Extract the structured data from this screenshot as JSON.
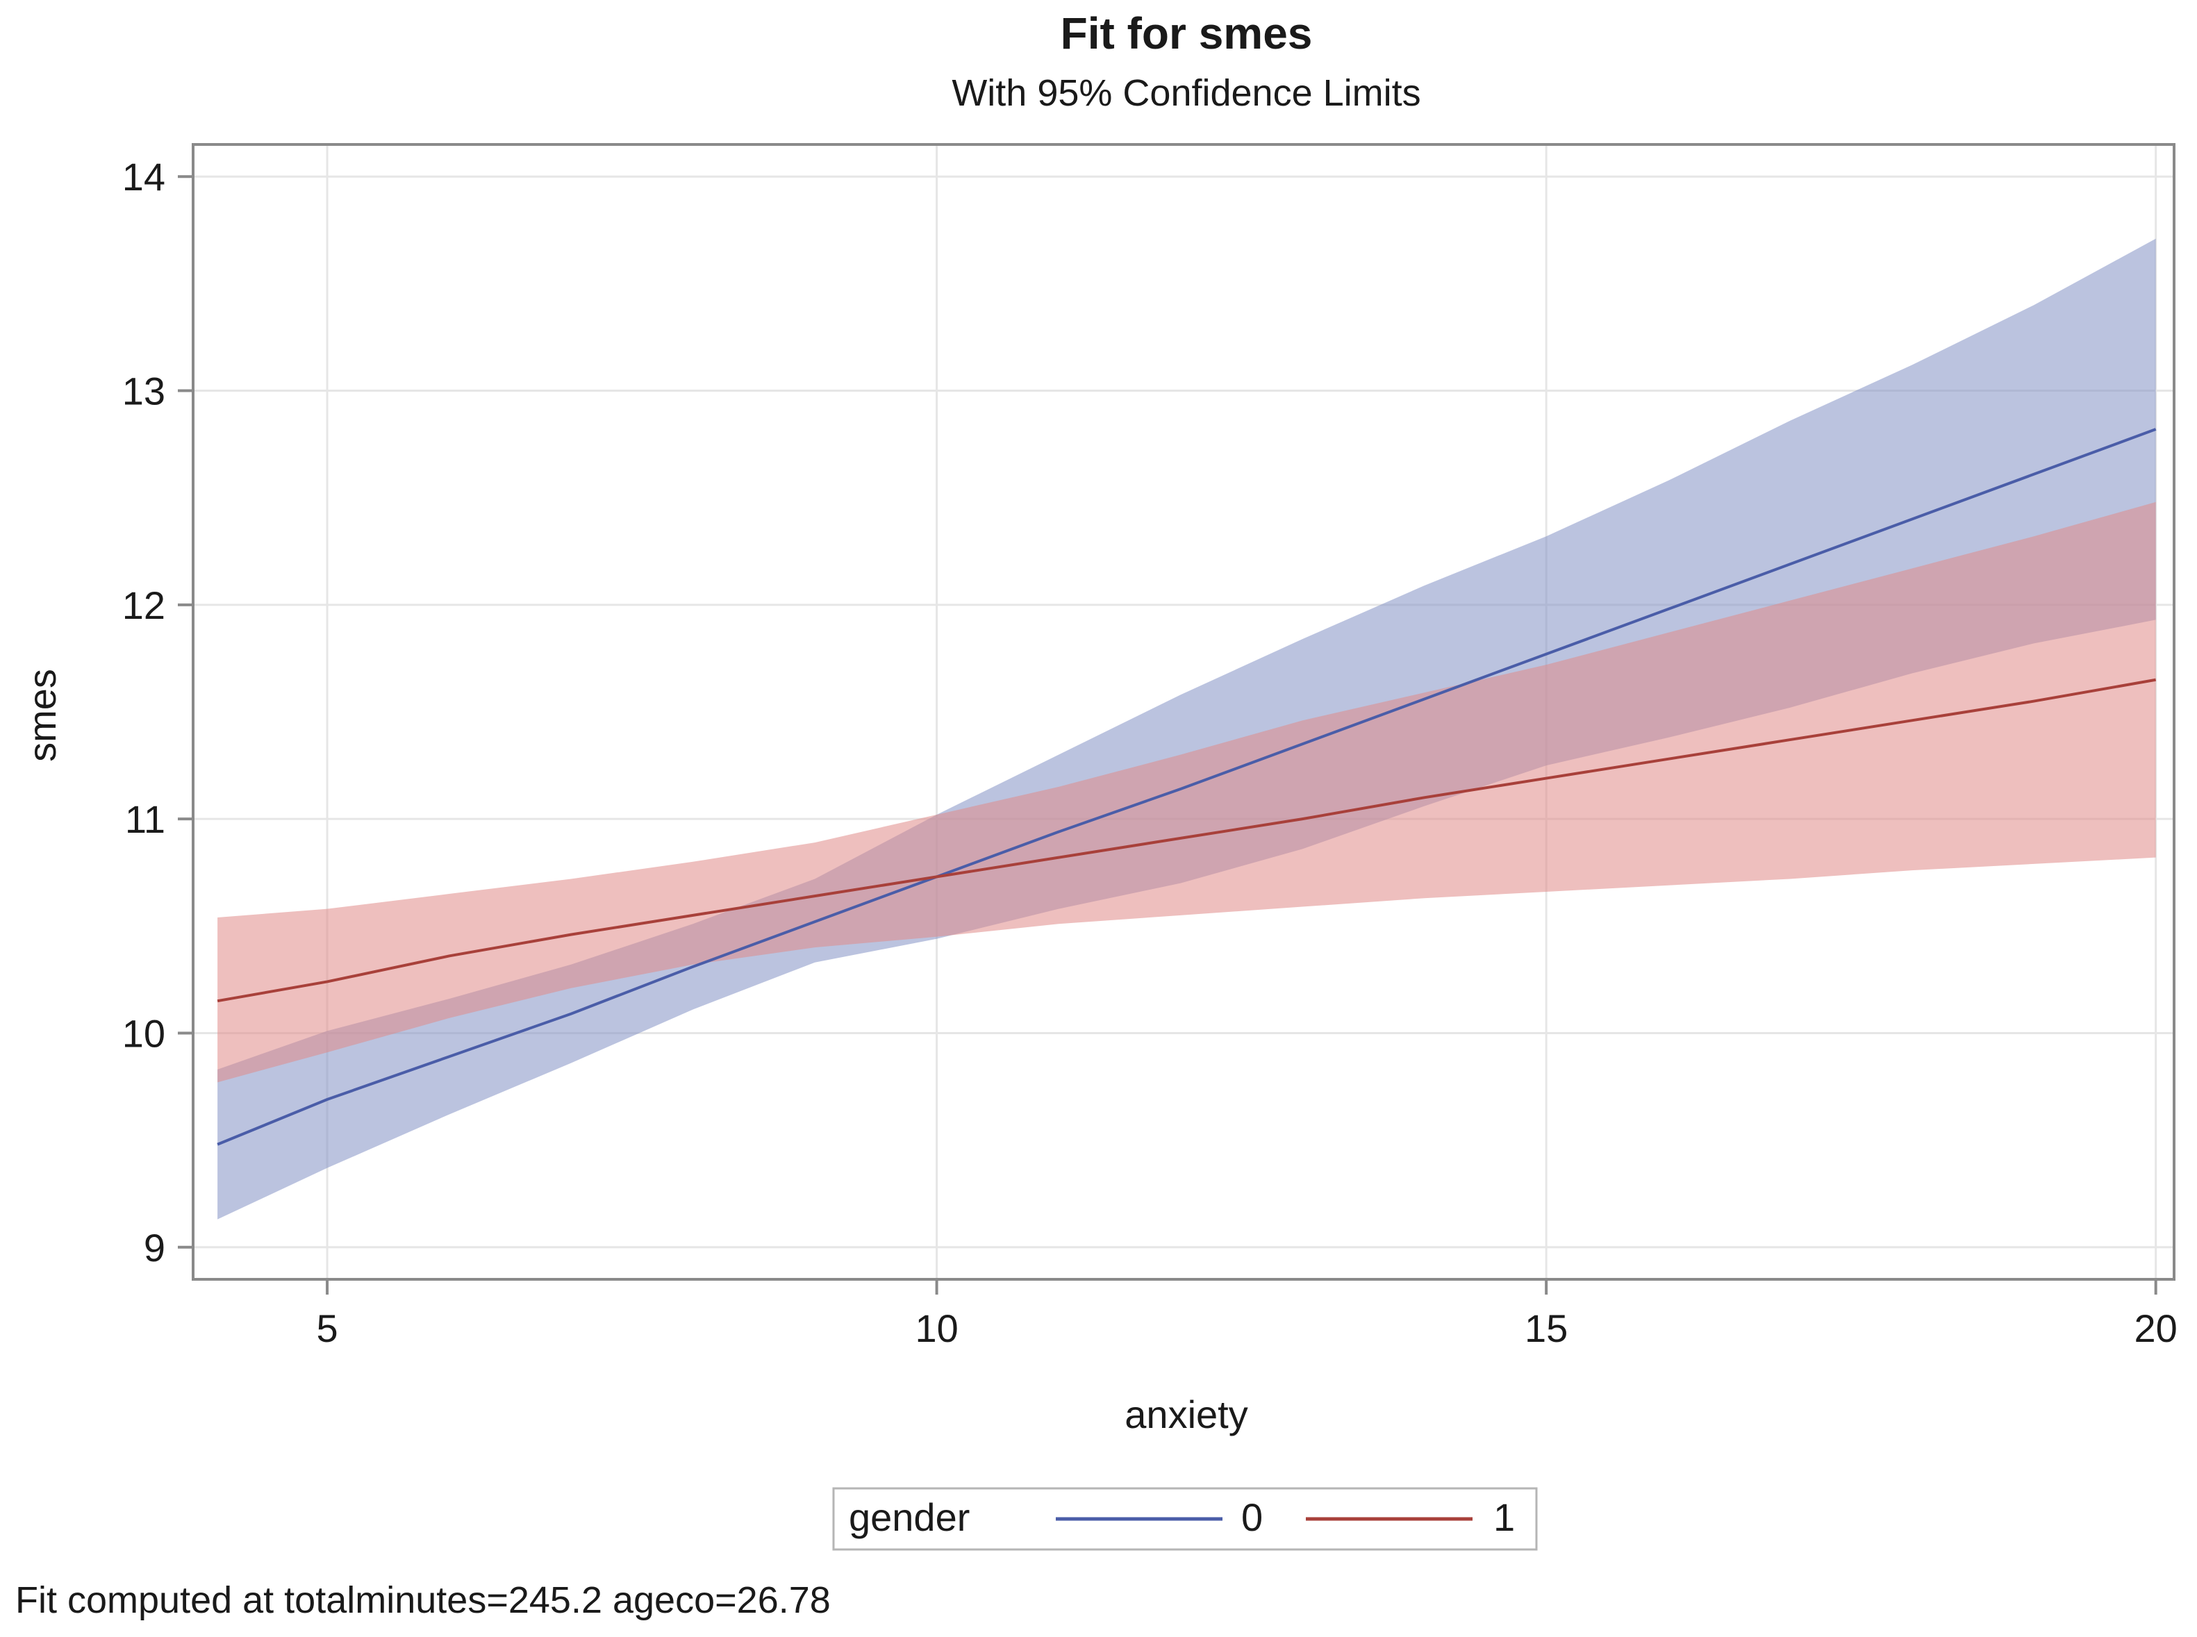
{
  "chart_data": {
    "type": "line",
    "title": "Fit for smes",
    "subtitle": "With 95% Confidence Limits",
    "xlabel": "anxiety",
    "ylabel": "smes",
    "xlim": [
      3.9,
      20.15
    ],
    "ylim": [
      8.85,
      14.15
    ],
    "x_ticks": [
      5,
      10,
      15,
      20
    ],
    "y_ticks": [
      9,
      10,
      11,
      12,
      13,
      14
    ],
    "grid": true,
    "legend": {
      "title": "gender",
      "placement": "bottom-center",
      "entries": [
        {
          "label": "0",
          "color": "#4a5da8"
        },
        {
          "label": "1",
          "color": "#a8403a"
        }
      ]
    },
    "footnote": "Fit computed at totalminutes=245.2 ageco=26.78",
    "series": [
      {
        "name": "0",
        "line_color": "#4a5da8",
        "band_color": "#8491c4",
        "x": [
          4.1,
          5.0,
          6.0,
          7.0,
          8.0,
          9.0,
          10.0,
          11.0,
          12.0,
          13.0,
          14.0,
          15.0,
          16.0,
          17.0,
          18.0,
          19.0,
          20.0
        ],
        "fit": [
          9.48,
          9.69,
          9.89,
          10.09,
          10.31,
          10.52,
          10.73,
          10.94,
          11.14,
          11.35,
          11.56,
          11.77,
          11.98,
          12.19,
          12.4,
          12.61,
          12.82
        ],
        "lower": [
          9.13,
          9.37,
          9.62,
          9.86,
          10.11,
          10.33,
          10.44,
          10.58,
          10.7,
          10.86,
          11.06,
          11.25,
          11.38,
          11.52,
          11.68,
          11.82,
          11.93
        ],
        "upper": [
          9.83,
          10.01,
          10.16,
          10.32,
          10.51,
          10.72,
          11.02,
          11.3,
          11.58,
          11.84,
          12.09,
          12.32,
          12.58,
          12.86,
          13.12,
          13.4,
          13.71
        ]
      },
      {
        "name": "1",
        "line_color": "#a8403a",
        "band_color": "#e08a88",
        "x": [
          4.1,
          5.0,
          6.0,
          7.0,
          8.0,
          9.0,
          10.0,
          11.0,
          12.0,
          13.0,
          14.0,
          15.0,
          16.0,
          17.0,
          18.0,
          19.0,
          20.0
        ],
        "fit": [
          10.15,
          10.24,
          10.36,
          10.46,
          10.55,
          10.64,
          10.73,
          10.82,
          10.91,
          11.0,
          11.1,
          11.19,
          11.28,
          11.37,
          11.46,
          11.55,
          11.65
        ],
        "lower": [
          9.77,
          9.91,
          10.07,
          10.21,
          10.32,
          10.4,
          10.45,
          10.51,
          10.55,
          10.59,
          10.63,
          10.66,
          10.69,
          10.72,
          10.76,
          10.79,
          10.82
        ],
        "upper": [
          10.54,
          10.58,
          10.65,
          10.72,
          10.8,
          10.89,
          11.02,
          11.15,
          11.3,
          11.46,
          11.59,
          11.72,
          11.87,
          12.02,
          12.17,
          12.32,
          12.48
        ]
      }
    ]
  }
}
